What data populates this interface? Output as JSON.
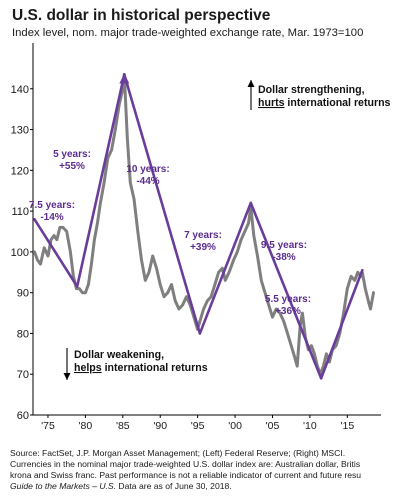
{
  "title": "U.S. dollar in historical perspective",
  "subtitle": "Index level, nom. major trade-weighted exchange rate, Mar. 1973=100",
  "colors": {
    "series": "#7f7f7f",
    "trend": "#6a3d9a",
    "annotation": "#5b2c8f",
    "arrow": "#000000",
    "axis": "#000000"
  },
  "chart_data": {
    "type": "line",
    "title": "U.S. dollar in historical perspective",
    "ylabel": "",
    "xlabel": "",
    "xlim": [
      1973,
      2019.5
    ],
    "ylim": [
      60,
      150
    ],
    "yticks": [
      60,
      70,
      80,
      90,
      100,
      110,
      120,
      130,
      140
    ],
    "xticks": [
      1975,
      1980,
      1985,
      1990,
      1995,
      2000,
      2005,
      2010,
      2015
    ],
    "xtick_labels": [
      "'75",
      "'80",
      "'85",
      "'90",
      "'95",
      "'00",
      "'05",
      "'10",
      "'15"
    ],
    "grid": false,
    "series": [
      {
        "x": [
          1973.2,
          1973.6,
          1974.0,
          1974.5,
          1975.0,
          1975.4,
          1975.8,
          1976.2,
          1976.6,
          1977.0,
          1977.5,
          1978.0,
          1978.4,
          1978.8,
          1979.2,
          1979.6,
          1980.0,
          1980.4,
          1980.8,
          1981.2,
          1981.6,
          1982.0,
          1982.5,
          1983.0,
          1983.5,
          1984.0,
          1984.5,
          1985.0,
          1985.2,
          1985.6,
          1986.0,
          1986.5,
          1987.0,
          1987.5,
          1988.0,
          1988.5,
          1989.0,
          1989.5,
          1990.0,
          1990.5,
          1991.0,
          1991.5,
          1992.0,
          1992.5,
          1993.0,
          1993.5,
          1994.0,
          1994.5,
          1995.0,
          1995.3,
          1995.8,
          1996.3,
          1996.8,
          1997.3,
          1997.8,
          1998.3,
          1998.7,
          1999.2,
          1999.8,
          2000.3,
          2000.8,
          2001.3,
          2001.8,
          2002.1,
          2002.5,
          2003.0,
          2003.5,
          2004.0,
          2004.5,
          2005.0,
          2005.5,
          2006.0,
          2006.5,
          2007.0,
          2007.5,
          2008.0,
          2008.3,
          2008.7,
          2009.0,
          2009.4,
          2009.8,
          2010.2,
          2010.6,
          2011.0,
          2011.4,
          2011.8,
          2012.2,
          2012.6,
          2013.0,
          2013.5,
          2014.0,
          2014.5,
          2015.0,
          2015.5,
          2016.0,
          2016.4,
          2016.8,
          2017.0,
          2017.4,
          2017.8,
          2018.1,
          2018.5
        ],
        "values": [
          100,
          98,
          97,
          101,
          99,
          103,
          104,
          103,
          106,
          106,
          105,
          100,
          94,
          91,
          91,
          90,
          90,
          92,
          97,
          103,
          107,
          112,
          117,
          123,
          125,
          130,
          136,
          140,
          143.5,
          128,
          117,
          113,
          105,
          98,
          93,
          95,
          99,
          96,
          92,
          89,
          90,
          92,
          88,
          86,
          87,
          89,
          87,
          84,
          81,
          83,
          86,
          88,
          89,
          92,
          95,
          96,
          93,
          95,
          98,
          100,
          103,
          105,
          107,
          111,
          104,
          99,
          93,
          90,
          87,
          84,
          86,
          85,
          83,
          80,
          77,
          74,
          72,
          82,
          85,
          79,
          76,
          77,
          75,
          72,
          70,
          72,
          75,
          73,
          76,
          77,
          80,
          85,
          91,
          94,
          93,
          95,
          94,
          95,
          91,
          88,
          86,
          90
        ]
      }
    ],
    "trend_lines": [
      {
        "points": [
          [
            1973.2,
            108
          ],
          [
            1978.9,
            91.5
          ]
        ],
        "label_lines": [
          "7.5 years:",
          "-14%"
        ]
      },
      {
        "points": [
          [
            1978.9,
            91.5
          ],
          [
            1985.2,
            143.5
          ]
        ],
        "label_lines": [
          "5 years:",
          "+55%"
        ]
      },
      {
        "points": [
          [
            1985.2,
            143.5
          ],
          [
            1995.3,
            80
          ]
        ],
        "label_lines": [
          "10 years:",
          "-44%"
        ]
      },
      {
        "points": [
          [
            1995.3,
            80
          ],
          [
            2002.1,
            112
          ]
        ],
        "label_lines": [
          "7 years:",
          "+39%"
        ]
      },
      {
        "points": [
          [
            2002.1,
            112
          ],
          [
            2011.5,
            69
          ]
        ],
        "label_lines": [
          "9.5 years:",
          "-38%"
        ]
      },
      {
        "points": [
          [
            2011.5,
            69
          ],
          [
            2017.0,
            95.5
          ]
        ],
        "label_lines": [
          "5.5 years:",
          "+36%"
        ]
      }
    ],
    "annotations": [
      {
        "direction": "up",
        "line1": "Dollar strengthening,",
        "line2_underline": "hurts",
        "line2_rest": " international returns"
      },
      {
        "direction": "down",
        "line1": "Dollar weakening,",
        "line2_underline": "helps",
        "line2_rest": " international returns"
      }
    ]
  },
  "footnotes": [
    "Source: FactSet, J.P. Morgan Asset Management; (Left) Federal Reserve; (Right) MSCI.",
    "Currencies in the nominal major trade-weighted U.S. dollar index are: Australian dollar, Britis",
    "krona and Swiss franc. Past performance is not a reliable indicator of current and future resu"
  ],
  "footnote_last": {
    "italic": "Guide to the Markets – U.S.",
    "rest": " Data are as of June 30, 2018."
  }
}
